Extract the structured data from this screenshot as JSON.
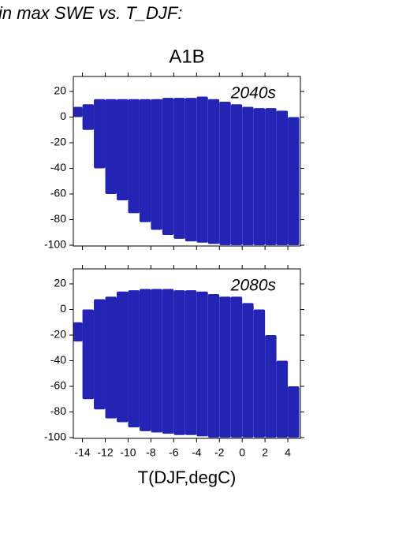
{
  "header": "in max SWE vs. T_DJF:",
  "chart_data": {
    "type": "range",
    "title": "A1B",
    "xlabel": "T(DJF,degC)",
    "color": "#2323b4",
    "x": [
      -14.5,
      -13.5,
      -12.5,
      -11.5,
      -10.5,
      -9.5,
      -8.5,
      -7.5,
      -6.5,
      -5.5,
      -4.5,
      -3.5,
      -2.5,
      -1.5,
      -0.5,
      0.5,
      1.5,
      2.5,
      3.5,
      4.5
    ],
    "xlim": [
      -14.8,
      5.1
    ],
    "xticks": [
      -14,
      -12,
      -10,
      -8,
      -6,
      -4,
      -2,
      0,
      2,
      4
    ],
    "ylim": [
      -100.6,
      31.7
    ],
    "yticks": [
      -100,
      -80,
      -60,
      -40,
      -20,
      0,
      20
    ],
    "panels": [
      {
        "label": "2040s",
        "upper": [
          8,
          10,
          14,
          14,
          14,
          14,
          14,
          14,
          15,
          15,
          15,
          16,
          14,
          12,
          10,
          8,
          7,
          7,
          5,
          0
        ],
        "lower": [
          0,
          -10,
          -40,
          -60,
          -65,
          -75,
          -82,
          -88,
          -92,
          -95,
          -97,
          -98,
          -99,
          -100,
          -100,
          -100,
          -100,
          -100,
          -100,
          -100
        ]
      },
      {
        "label": "2080s",
        "upper": [
          -10,
          0,
          8,
          10,
          14,
          15,
          16,
          16,
          16,
          15,
          15,
          14,
          12,
          10,
          10,
          5,
          0,
          -20,
          -40,
          -60
        ],
        "lower": [
          -25,
          -70,
          -78,
          -85,
          -88,
          -92,
          -95,
          -96,
          -97,
          -98,
          -98,
          -99,
          -100,
          -100,
          -100,
          -100,
          -100,
          -100,
          -100,
          -100
        ]
      }
    ]
  }
}
